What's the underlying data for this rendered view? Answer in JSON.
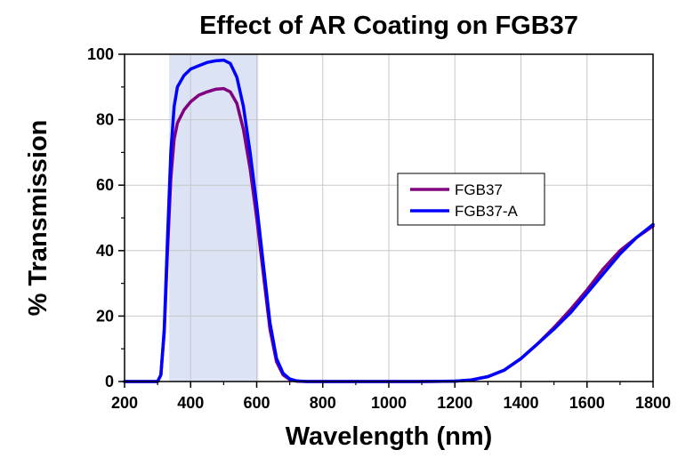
{
  "chart_data": {
    "type": "line",
    "title": "Effect of AR Coating on FGB37",
    "xlabel": "Wavelength (nm)",
    "ylabel": "% Transmission",
    "xlim": [
      200,
      1800
    ],
    "ylim": [
      0,
      100
    ],
    "xticks": [
      200,
      400,
      600,
      800,
      1000,
      1200,
      1400,
      1600,
      1800
    ],
    "yticks": [
      0,
      20,
      40,
      60,
      80,
      100
    ],
    "grid": true,
    "legend_position": "right-center",
    "shaded_region": {
      "x_start": 335,
      "x_end": 605,
      "color": "#dbe3f5"
    },
    "series": [
      {
        "name": "FGB37",
        "color": "#800080",
        "x": [
          200,
          300,
          310,
          320,
          330,
          340,
          350,
          360,
          380,
          400,
          425,
          450,
          475,
          500,
          520,
          540,
          560,
          580,
          600,
          620,
          640,
          660,
          680,
          700,
          720,
          750,
          800,
          900,
          1000,
          1100,
          1200,
          1250,
          1300,
          1350,
          1400,
          1450,
          1500,
          1550,
          1600,
          1650,
          1700,
          1750,
          1800
        ],
        "y": [
          0,
          0,
          2,
          15,
          40,
          62,
          74,
          79,
          83,
          85.5,
          87.5,
          88.5,
          89.3,
          89.5,
          88.5,
          85,
          77,
          65,
          50,
          33,
          16,
          6,
          2,
          0.6,
          0.1,
          0,
          0,
          0,
          0,
          0,
          0.1,
          0.5,
          1.5,
          3.5,
          7,
          11.5,
          16.5,
          22,
          28,
          34.5,
          40,
          44,
          47.5
        ]
      },
      {
        "name": "FGB37-A",
        "color": "#0000ff",
        "x": [
          200,
          300,
          310,
          320,
          330,
          340,
          350,
          360,
          380,
          400,
          425,
          450,
          475,
          500,
          520,
          540,
          560,
          580,
          600,
          620,
          640,
          660,
          680,
          700,
          720,
          750,
          800,
          900,
          1000,
          1100,
          1200,
          1250,
          1300,
          1350,
          1400,
          1450,
          1500,
          1550,
          1600,
          1650,
          1700,
          1750,
          1800
        ],
        "y": [
          0,
          0,
          2,
          16,
          44,
          70,
          84,
          90,
          93.5,
          95.5,
          96.5,
          97.5,
          98,
          98.2,
          97.2,
          93,
          84,
          70,
          54,
          36,
          18,
          7,
          2.5,
          0.8,
          0.2,
          0,
          0,
          0,
          0,
          0,
          0.1,
          0.5,
          1.5,
          3.5,
          7,
          11.5,
          16,
          21,
          27,
          33,
          39,
          44,
          48
        ]
      }
    ]
  }
}
